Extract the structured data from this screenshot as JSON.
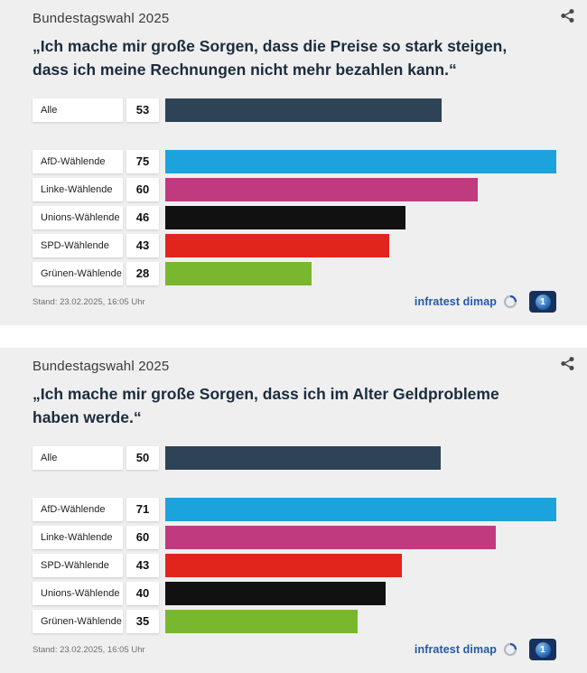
{
  "panels": [
    {
      "header": "Bundestagswahl 2025",
      "stand": "Stand: 23.02.2025, 16:05 Uhr",
      "source": "infratest dimap",
      "ard_text": "1"
    },
    {
      "header": "Bundestagswahl 2025",
      "stand": "Stand: 23.02.2025, 16:05 Uhr",
      "source": "infratest dimap",
      "ard_text": "1"
    }
  ],
  "chart_data": [
    {
      "type": "bar",
      "orientation": "horizontal",
      "title": "„Ich mache mir große Sorgen, dass die Preise so stark steigen, dass ich meine Rechnungen nicht mehr bezahlen kann.“",
      "categories": [
        "Alle",
        "AfD-Wählende",
        "Linke-Wählende",
        "Unions-Wählende",
        "SPD-Wählende",
        "Grünen-Wählende"
      ],
      "values": [
        53,
        75,
        60,
        46,
        43,
        28
      ],
      "colors": [
        "#2e4356",
        "#1ca2dd",
        "#c03a80",
        "#111111",
        "#e2251c",
        "#79b82e"
      ],
      "xlim": [
        0,
        75
      ],
      "value_labels": "shown",
      "legend": "none",
      "grid": "off"
    },
    {
      "type": "bar",
      "orientation": "horizontal",
      "title": "„Ich mache mir große Sorgen, dass ich im Alter Geldprobleme haben werde.“",
      "categories": [
        "Alle",
        "AfD-Wählende",
        "Linke-Wählende",
        "SPD-Wählende",
        "Unions-Wählende",
        "Grünen-Wählende"
      ],
      "values": [
        50,
        71,
        60,
        43,
        40,
        35
      ],
      "colors": [
        "#2e4356",
        "#1ca2dd",
        "#c03a80",
        "#e2251c",
        "#111111",
        "#79b82e"
      ],
      "xlim": [
        0,
        71
      ],
      "value_labels": "shown",
      "legend": "none",
      "grid": "off"
    }
  ],
  "ui_colors": {
    "panel_bg": "#efefef",
    "title_text": "#1c2c3d",
    "infratest_blue": "#2458a6",
    "ard_navy": "#16315e"
  }
}
